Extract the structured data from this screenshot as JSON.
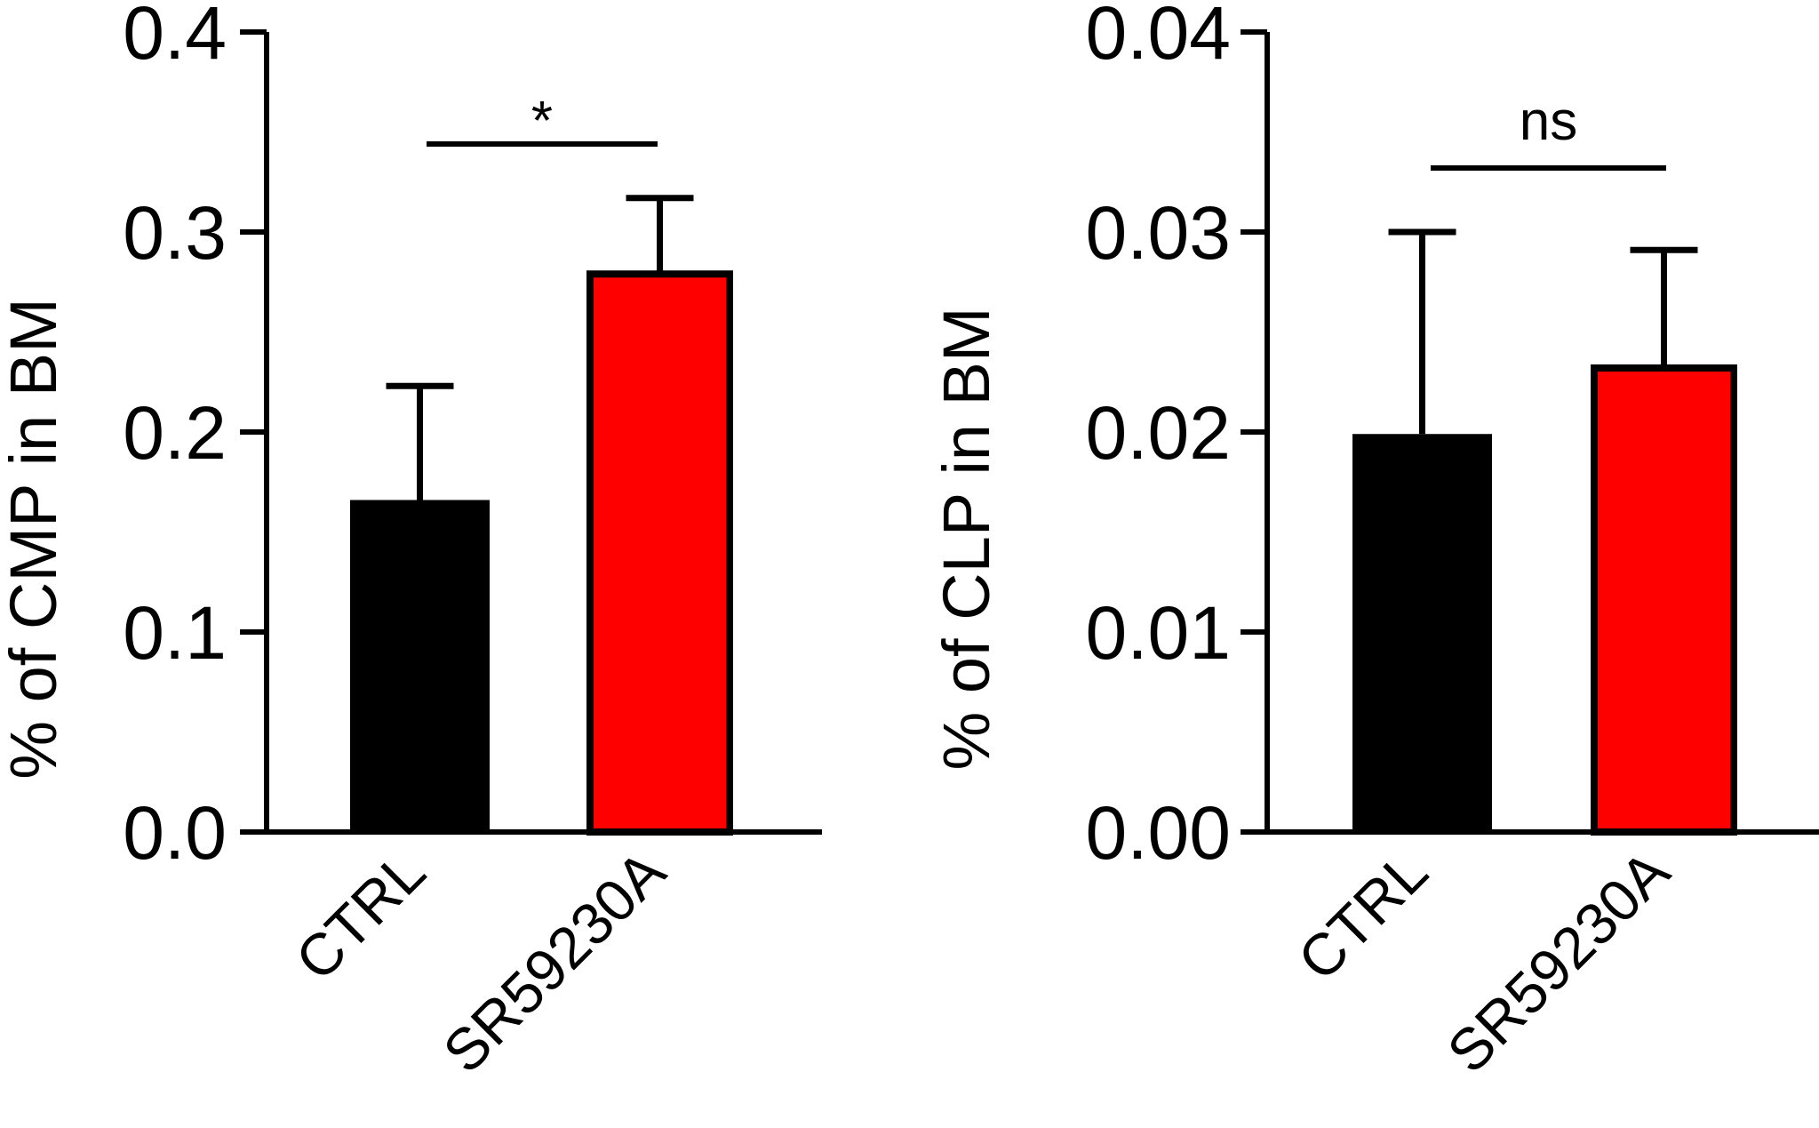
{
  "chart_data": [
    {
      "type": "bar",
      "title": "",
      "xlabel": "",
      "ylabel": "% of CMP in BM",
      "ylim": [
        0,
        0.4
      ],
      "yticks": [
        "0.0",
        "0.1",
        "0.2",
        "0.3",
        "0.4"
      ],
      "categories": [
        "CTRL",
        "SR59230A"
      ],
      "values": [
        0.166,
        0.279
      ],
      "errors": [
        0.057,
        0.038
      ],
      "colors": [
        "#000000",
        "#ff0000"
      ],
      "significance": {
        "label": "*",
        "value": 0.344
      }
    },
    {
      "type": "bar",
      "title": "",
      "xlabel": "",
      "ylabel": "% of CLP in BM",
      "ylim": [
        0,
        0.04
      ],
      "yticks": [
        "0.00",
        "0.01",
        "0.02",
        "0.03",
        "0.04"
      ],
      "categories": [
        "CTRL",
        "SR59230A"
      ],
      "values": [
        0.0199,
        0.0232
      ],
      "errors": [
        0.0101,
        0.0059
      ],
      "colors": [
        "#000000",
        "#ff0000"
      ],
      "significance": {
        "label": "ns",
        "value": 0.0332
      }
    }
  ]
}
